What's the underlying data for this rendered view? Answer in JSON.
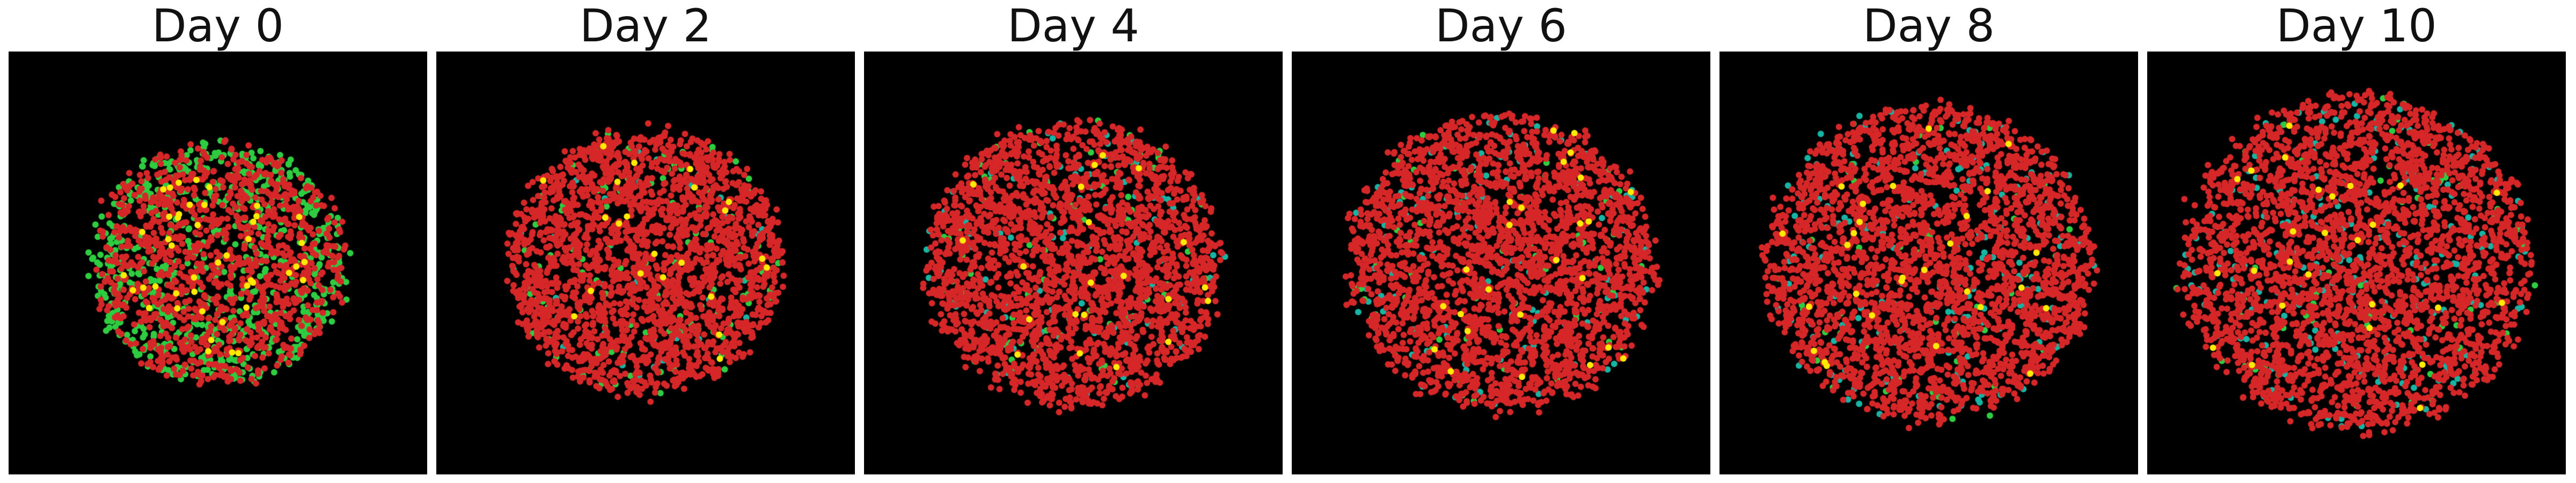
{
  "panels": [
    {
      "title": "Day 0"
    },
    {
      "title": "Day 2"
    },
    {
      "title": "Day 4"
    },
    {
      "title": "Day 6"
    },
    {
      "title": "Day 8"
    },
    {
      "title": "Day 10"
    }
  ],
  "colors": {
    "background": "#000000",
    "red_cells": "#d62728",
    "green_cells": "#2ecc40",
    "yellow_cells": "#ffea00",
    "teal_cells": "#17b3a3"
  }
}
